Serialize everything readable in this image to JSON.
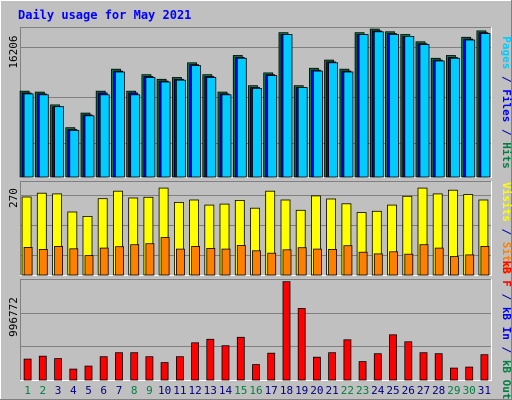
{
  "chart_data": {
    "type": "bar",
    "title": "Daily usage for May 2021",
    "categories": [
      "1",
      "2",
      "3",
      "4",
      "5",
      "6",
      "7",
      "8",
      "9",
      "10",
      "11",
      "12",
      "13",
      "14",
      "15",
      "16",
      "17",
      "18",
      "19",
      "20",
      "21",
      "22",
      "23",
      "24",
      "25",
      "26",
      "27",
      "28",
      "29",
      "30",
      "31"
    ],
    "weekend_days": [
      "1",
      "2",
      "8",
      "9",
      "15",
      "16",
      "22",
      "23",
      "29",
      "30"
    ],
    "panels": [
      {
        "id": "top",
        "y_max_label": "16206",
        "ymax": 16206,
        "side_label": [
          {
            "text": "Pages",
            "color": "#00ccff"
          },
          {
            "text": " / ",
            "color": "#0000aa"
          },
          {
            "text": "Files",
            "color": "#0000ff"
          },
          {
            "text": " / ",
            "color": "#0000aa"
          },
          {
            "text": "Hits",
            "color": "#008040"
          }
        ],
        "series": [
          {
            "name": "Hits",
            "color": "#008040",
            "values": [
              9400,
              9300,
              7900,
              5400,
              7000,
              9400,
              11800,
              9400,
              11200,
              10700,
              10900,
              12500,
              11200,
              9300,
              13300,
              10000,
              11400,
              15800,
              10000,
              11900,
              12800,
              11800,
              15800,
              16200,
              15900,
              15600,
              14800,
              13000,
              13300,
              15300,
              16000
            ]
          },
          {
            "name": "Files",
            "color": "#0000ff",
            "values": [
              9200,
              9100,
              7700,
              5200,
              6800,
              9200,
              11600,
              9200,
              11000,
              10500,
              10700,
              12300,
              11000,
              9100,
              13100,
              9800,
              11200,
              15600,
              9800,
              11700,
              12600,
              11600,
              15600,
              16000,
              15700,
              15400,
              14600,
              12800,
              13100,
              15100,
              15800
            ]
          },
          {
            "name": "Pages",
            "color": "#00ccff",
            "values": [
              9100,
              9000,
              7700,
              5100,
              6700,
              9000,
              11500,
              9000,
              10900,
              10400,
              10600,
              12200,
              10900,
              9000,
              13000,
              9700,
              11100,
              15600,
              9800,
              11600,
              12500,
              11500,
              15600,
              15900,
              15600,
              15400,
              14500,
              12700,
              13000,
              15000,
              15700
            ]
          }
        ]
      },
      {
        "id": "middle",
        "y_max_label": "270",
        "ymax": 270,
        "side_label": [
          {
            "text": "Visits",
            "color": "#ffff00"
          },
          {
            "text": " / ",
            "color": "#0000aa"
          },
          {
            "text": "Sites",
            "color": "#ff8000"
          }
        ],
        "series": [
          {
            "name": "Visits",
            "color": "#ffff00",
            "values": [
              229,
              240,
              238,
              185,
              172,
              224,
              246,
              226,
              228,
              255,
              213,
              220,
              205,
              208,
              219,
              196,
              246,
              220,
              190,
              232,
              223,
              209,
              183,
              187,
              205,
              231,
              255,
              238,
              249,
              236,
              220
            ]
          },
          {
            "name": "Sites",
            "color": "#ff8000",
            "values": [
              81,
              75,
              84,
              77,
              57,
              79,
              83,
              89,
              92,
              110,
              76,
              84,
              78,
              76,
              87,
              71,
              64,
              74,
              80,
              76,
              75,
              86,
              67,
              62,
              68,
              61,
              89,
              79,
              54,
              59,
              84
            ]
          }
        ]
      },
      {
        "id": "bottom",
        "y_max_label": "996772",
        "ymax": 996772,
        "side_label": [
          {
            "text": "kB F",
            "color": "#ff0000"
          },
          {
            "text": " / ",
            "color": "#0000aa"
          },
          {
            "text": "kB In",
            "color": "#0000ff"
          },
          {
            "text": " / ",
            "color": "#0000aa"
          },
          {
            "text": "kB Out",
            "color": "#008040"
          }
        ],
        "series": [
          {
            "name": "kB F",
            "color": "#ff0000",
            "values": [
              210000,
              240000,
              215000,
              110000,
              140000,
              235000,
              275000,
              275000,
              235000,
              175000,
              235000,
              375000,
              410000,
              345000,
              430000,
              155000,
              270000,
              990000,
              720000,
              230000,
              275000,
              405000,
              185000,
              265000,
              455000,
              385000,
              275000,
              265000,
              120000,
              130000,
              255000
            ]
          }
        ]
      }
    ]
  }
}
